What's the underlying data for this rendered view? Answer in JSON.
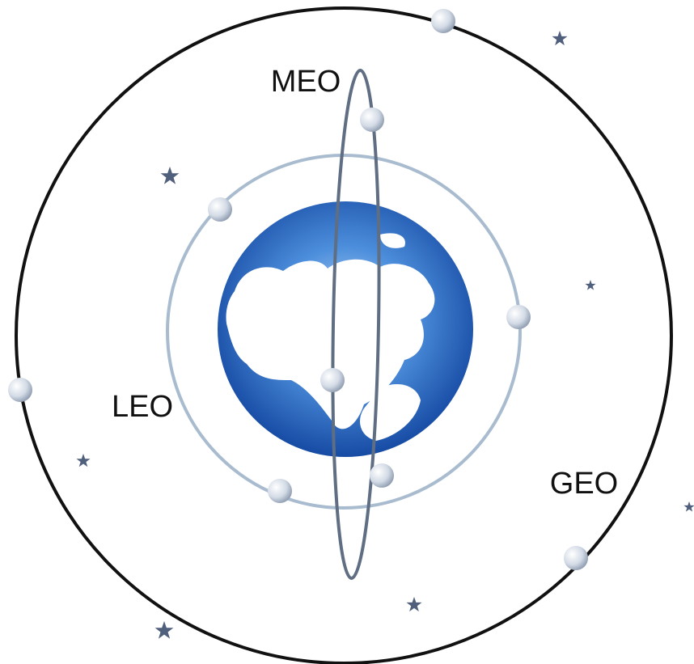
{
  "labels": {
    "meo": "MEO",
    "leo": "LEO",
    "geo": "GEO"
  }
}
